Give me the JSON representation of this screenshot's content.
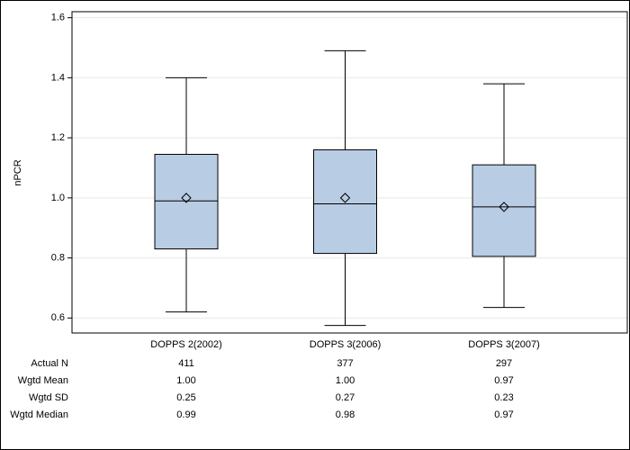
{
  "chart_data": {
    "type": "box",
    "y_label": "nPCR",
    "categories": [
      "DOPPS 2(2002)",
      "DOPPS 3(2006)",
      "DOPPS 3(2007)"
    ],
    "boxes": [
      {
        "low": 0.62,
        "q1": 0.83,
        "median": 0.99,
        "q3": 1.145,
        "high": 1.4,
        "mean": 1.0
      },
      {
        "low": 0.575,
        "q1": 0.815,
        "median": 0.98,
        "q3": 1.16,
        "high": 1.49,
        "mean": 1.0
      },
      {
        "low": 0.635,
        "q1": 0.805,
        "median": 0.97,
        "q3": 1.11,
        "high": 1.38,
        "mean": 0.97
      }
    ],
    "color": "#b8cce4",
    "ylim": [
      0.55,
      1.62
    ],
    "yticks": [
      0.6,
      0.8,
      {
        "value": 1,
        "label": "1.0"
      },
      1.2,
      1.4,
      1.6
    ],
    "grid": true,
    "table": {
      "rows": [
        {
          "label": "Actual N",
          "values": [
            "411",
            "377",
            "297"
          ]
        },
        {
          "label": "Wgtd Mean",
          "values": [
            "1.00",
            "1.00",
            "0.97"
          ]
        },
        {
          "label": "Wgtd SD",
          "values": [
            "0.25",
            "0.27",
            "0.23"
          ]
        },
        {
          "label": "Wgtd Median",
          "values": [
            "0.99",
            "0.98",
            "0.97"
          ]
        }
      ]
    }
  }
}
